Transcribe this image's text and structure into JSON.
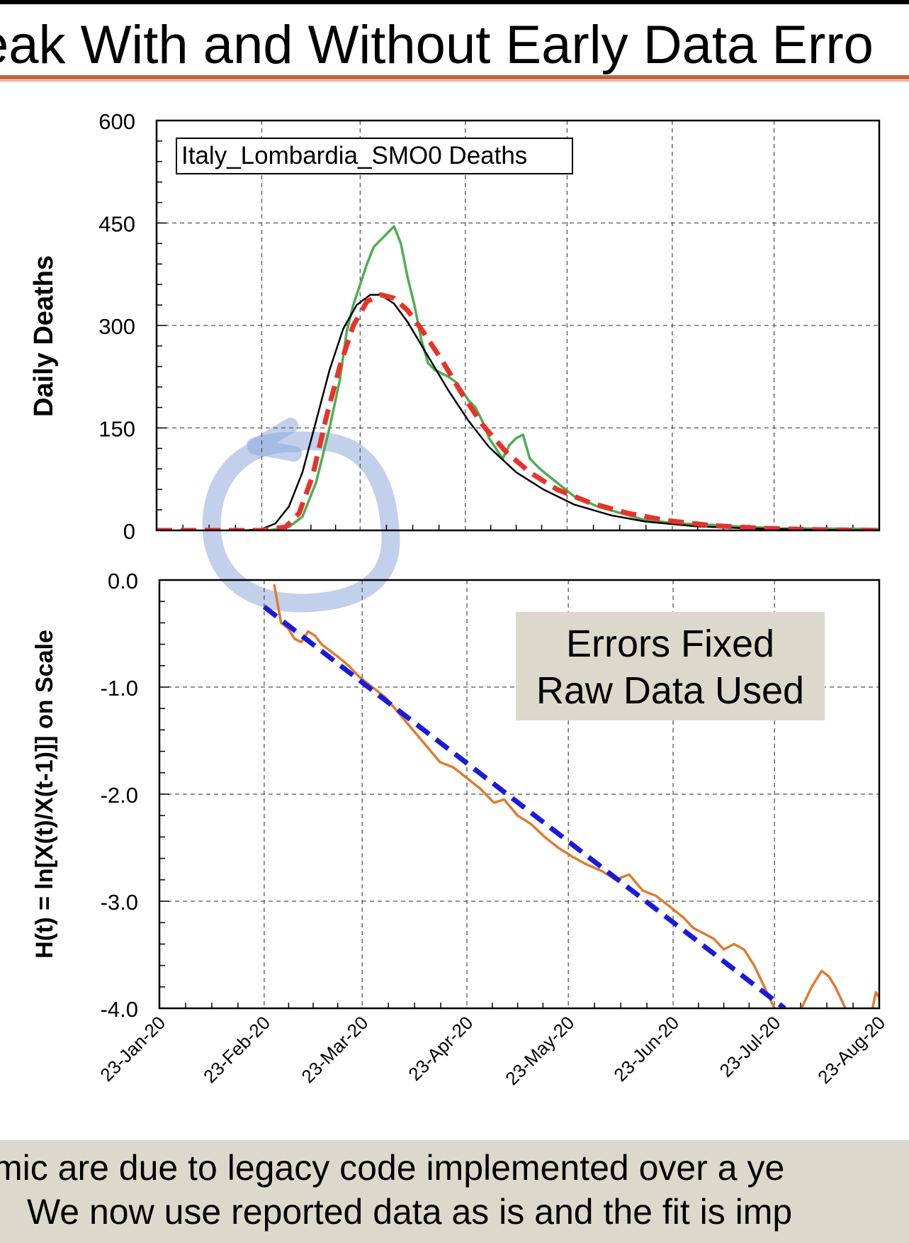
{
  "slide": {
    "title": "eak With and Without Early Data Erro",
    "caption_line1": "mic are due to legacy code implemented over a ye",
    "caption_line2": "We now use reported data as is and the fit is imp"
  },
  "chart_data": [
    {
      "type": "line",
      "legend": "Italy_Lombardia_SMO0 Deaths",
      "ylabel": "Daily Deaths",
      "ylim": [
        0,
        600
      ],
      "yticks": [
        0,
        150,
        300,
        450,
        600
      ],
      "ytick_labels": [
        "0",
        "150",
        "300",
        "450",
        "600"
      ],
      "xlim": [
        "2020-01-23",
        "2020-08-23"
      ],
      "xticks": [
        "2020-01-23",
        "2020-02-23",
        "2020-03-23",
        "2020-04-23",
        "2020-05-23",
        "2020-06-23",
        "2020-07-23",
        "2020-08-23"
      ],
      "xtick_labels": [
        "23-Jan-20",
        "23-Feb-20",
        "23-Mar-20",
        "23-Apr-20",
        "23-May-20",
        "23-Jun-20",
        "23-Jul-20",
        "23-Aug-20"
      ],
      "grid": true,
      "series": [
        {
          "color": "#4caf50",
          "style": "solid",
          "points": [
            [
              "2020-02-25",
              0
            ],
            [
              "2020-03-02",
              5
            ],
            [
              "2020-03-06",
              20
            ],
            [
              "2020-03-10",
              70
            ],
            [
              "2020-03-14",
              150
            ],
            [
              "2020-03-17",
              220
            ],
            [
              "2020-03-19",
              290
            ],
            [
              "2020-03-21",
              330
            ],
            [
              "2020-03-23",
              360
            ],
            [
              "2020-03-25",
              390
            ],
            [
              "2020-03-27",
              415
            ],
            [
              "2020-03-29",
              425
            ],
            [
              "2020-03-31",
              435
            ],
            [
              "2020-04-02",
              445
            ],
            [
              "2020-04-04",
              420
            ],
            [
              "2020-04-06",
              370
            ],
            [
              "2020-04-08",
              330
            ],
            [
              "2020-04-10",
              280
            ],
            [
              "2020-04-12",
              245
            ],
            [
              "2020-04-14",
              235
            ],
            [
              "2020-04-16",
              230
            ],
            [
              "2020-04-18",
              225
            ],
            [
              "2020-04-20",
              218
            ],
            [
              "2020-04-22",
              205
            ],
            [
              "2020-04-24",
              190
            ],
            [
              "2020-04-26",
              180
            ],
            [
              "2020-04-28",
              160
            ],
            [
              "2020-04-30",
              135
            ],
            [
              "2020-05-02",
              120
            ],
            [
              "2020-05-04",
              105
            ],
            [
              "2020-05-06",
              125
            ],
            [
              "2020-05-08",
              135
            ],
            [
              "2020-05-10",
              140
            ],
            [
              "2020-05-12",
              105
            ],
            [
              "2020-05-15",
              90
            ],
            [
              "2020-05-20",
              70
            ],
            [
              "2020-05-25",
              50
            ],
            [
              "2020-06-01",
              35
            ],
            [
              "2020-06-08",
              25
            ],
            [
              "2020-06-15",
              15
            ],
            [
              "2020-06-25",
              10
            ],
            [
              "2020-07-05",
              8
            ],
            [
              "2020-07-15",
              5
            ],
            [
              "2020-07-25",
              3
            ],
            [
              "2020-08-23",
              2
            ]
          ]
        },
        {
          "color": "#000000",
          "style": "solid",
          "points": [
            [
              "2020-02-18",
              0
            ],
            [
              "2020-02-23",
              2
            ],
            [
              "2020-02-27",
              10
            ],
            [
              "2020-03-02",
              35
            ],
            [
              "2020-03-06",
              85
            ],
            [
              "2020-03-10",
              160
            ],
            [
              "2020-03-14",
              235
            ],
            [
              "2020-03-18",
              295
            ],
            [
              "2020-03-22",
              330
            ],
            [
              "2020-03-26",
              345
            ],
            [
              "2020-03-29",
              345
            ],
            [
              "2020-04-02",
              332
            ],
            [
              "2020-04-06",
              305
            ],
            [
              "2020-04-12",
              255
            ],
            [
              "2020-04-18",
              205
            ],
            [
              "2020-04-24",
              160
            ],
            [
              "2020-04-30",
              122
            ],
            [
              "2020-05-08",
              85
            ],
            [
              "2020-05-16",
              60
            ],
            [
              "2020-05-25",
              38
            ],
            [
              "2020-06-05",
              22
            ],
            [
              "2020-06-15",
              13
            ],
            [
              "2020-06-30",
              6
            ],
            [
              "2020-07-15",
              3
            ],
            [
              "2020-08-01",
              1
            ],
            [
              "2020-08-23",
              0
            ]
          ]
        },
        {
          "color": "#e8332a",
          "style": "dashed",
          "points": [
            [
              "2020-01-23",
              0
            ],
            [
              "2020-02-23",
              0
            ],
            [
              "2020-03-01",
              5
            ],
            [
              "2020-03-05",
              25
            ],
            [
              "2020-03-09",
              80
            ],
            [
              "2020-03-13",
              165
            ],
            [
              "2020-03-17",
              240
            ],
            [
              "2020-03-21",
              300
            ],
            [
              "2020-03-25",
              335
            ],
            [
              "2020-03-29",
              345
            ],
            [
              "2020-04-02",
              340
            ],
            [
              "2020-04-06",
              322
            ],
            [
              "2020-04-10",
              295
            ],
            [
              "2020-04-16",
              250
            ],
            [
              "2020-04-22",
              200
            ],
            [
              "2020-04-28",
              155
            ],
            [
              "2020-05-05",
              115
            ],
            [
              "2020-05-12",
              85
            ],
            [
              "2020-05-20",
              60
            ],
            [
              "2020-05-30",
              40
            ],
            [
              "2020-06-10",
              25
            ],
            [
              "2020-06-22",
              14
            ],
            [
              "2020-07-05",
              7
            ],
            [
              "2020-07-20",
              3
            ],
            [
              "2020-08-05",
              1
            ],
            [
              "2020-08-23",
              0
            ]
          ]
        }
      ]
    },
    {
      "type": "line",
      "ylabel": "H(t) = ln[X(t)/X(t-1)]] on  Scale",
      "ylim": [
        -4.0,
        0.0
      ],
      "yticks": [
        0,
        -1,
        -2,
        -3,
        -4
      ],
      "ytick_labels": [
        "0.0",
        "-1.0",
        "-2.0",
        "-3.0",
        "-4.0"
      ],
      "xlim": [
        "2020-01-23",
        "2020-08-23"
      ],
      "xticks": [
        "2020-01-23",
        "2020-02-23",
        "2020-03-23",
        "2020-04-23",
        "2020-05-23",
        "2020-06-23",
        "2020-07-23",
        "2020-08-23"
      ],
      "xtick_labels": [
        "23-Jan-20",
        "23-Feb-20",
        "23-Mar-20",
        "23-Apr-20",
        "23-May-20",
        "23-Jun-20",
        "23-Jul-20",
        "23-Aug-20"
      ],
      "grid": true,
      "annotation": {
        "line1": "Errors Fixed",
        "line2": "Raw Data Used"
      },
      "series": [
        {
          "color": "#e07b31",
          "style": "solid",
          "points": [
            [
              "2020-02-26",
              -0.05
            ],
            [
              "2020-02-28",
              -0.4
            ],
            [
              "2020-03-01",
              -0.45
            ],
            [
              "2020-03-03",
              -0.55
            ],
            [
              "2020-03-05",
              -0.58
            ],
            [
              "2020-03-07",
              -0.48
            ],
            [
              "2020-03-09",
              -0.52
            ],
            [
              "2020-03-11",
              -0.6
            ],
            [
              "2020-03-13",
              -0.65
            ],
            [
              "2020-03-16",
              -0.72
            ],
            [
              "2020-03-19",
              -0.8
            ],
            [
              "2020-03-22",
              -0.9
            ],
            [
              "2020-03-26",
              -1.0
            ],
            [
              "2020-03-30",
              -1.1
            ],
            [
              "2020-04-03",
              -1.25
            ],
            [
              "2020-04-07",
              -1.4
            ],
            [
              "2020-04-11",
              -1.55
            ],
            [
              "2020-04-15",
              -1.7
            ],
            [
              "2020-04-19",
              -1.75
            ],
            [
              "2020-04-23",
              -1.85
            ],
            [
              "2020-04-27",
              -1.95
            ],
            [
              "2020-05-01",
              -2.08
            ],
            [
              "2020-05-04",
              -2.05
            ],
            [
              "2020-05-08",
              -2.2
            ],
            [
              "2020-05-12",
              -2.28
            ],
            [
              "2020-05-16",
              -2.4
            ],
            [
              "2020-05-20",
              -2.5
            ],
            [
              "2020-05-24",
              -2.58
            ],
            [
              "2020-05-28",
              -2.65
            ],
            [
              "2020-06-02",
              -2.72
            ],
            [
              "2020-06-06",
              -2.8
            ],
            [
              "2020-06-10",
              -2.75
            ],
            [
              "2020-06-14",
              -2.9
            ],
            [
              "2020-06-18",
              -2.95
            ],
            [
              "2020-06-22",
              -3.05
            ],
            [
              "2020-06-26",
              -3.15
            ],
            [
              "2020-06-29",
              -3.25
            ],
            [
              "2020-07-02",
              -3.3
            ],
            [
              "2020-07-05",
              -3.35
            ],
            [
              "2020-07-08",
              -3.45
            ],
            [
              "2020-07-11",
              -3.4
            ],
            [
              "2020-07-14",
              -3.45
            ],
            [
              "2020-07-17",
              -3.6
            ],
            [
              "2020-07-20",
              -3.8
            ],
            [
              "2020-07-23",
              -4.0
            ]
          ]
        },
        {
          "color": "#e07b31",
          "style": "solid",
          "points": [
            [
              "2020-07-31",
              -4.0
            ],
            [
              "2020-08-03",
              -3.8
            ],
            [
              "2020-08-06",
              -3.65
            ],
            [
              "2020-08-08",
              -3.7
            ],
            [
              "2020-08-10",
              -3.8
            ],
            [
              "2020-08-13",
              -4.0
            ]
          ]
        },
        {
          "color": "#e07b31",
          "style": "solid",
          "points": [
            [
              "2020-08-21",
              -4.0
            ],
            [
              "2020-08-22",
              -3.85
            ],
            [
              "2020-08-23",
              -3.9
            ]
          ]
        },
        {
          "color": "#1a1adb",
          "style": "dashed",
          "points": [
            [
              "2020-02-23",
              -0.25
            ],
            [
              "2020-07-26",
              -4.0
            ]
          ]
        }
      ]
    }
  ]
}
